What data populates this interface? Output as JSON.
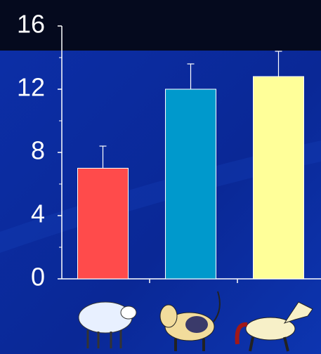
{
  "chart_data": {
    "type": "bar",
    "categories": [
      null,
      null,
      null
    ],
    "values": [
      7,
      12,
      12.8
    ],
    "errors": [
      1.4,
      1.6,
      1.6
    ],
    "colors": [
      "#ff4b4b",
      "#0099cc",
      "#ffff99"
    ],
    "ylim": [
      0,
      16
    ],
    "yticks": [
      0,
      4,
      8,
      12,
      16
    ],
    "minor_yticks": [
      2,
      6,
      10,
      14
    ]
  }
}
